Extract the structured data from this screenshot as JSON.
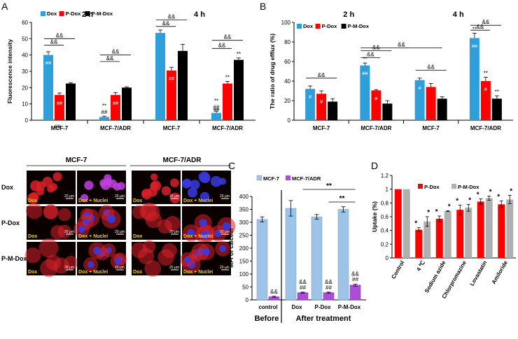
{
  "colors": {
    "dox": "#2e9fd8",
    "pdox": "#ff0000",
    "pmdox": "#000000",
    "mcf7": "#9dc3e6",
    "mcf7adr": "#a94fd6",
    "grey": "#b0b0b0",
    "micro_bg": "#0a0000",
    "micro_red": "#d8202a",
    "micro_blue": "#3a3adf",
    "micro_purple": "#c040e0"
  },
  "panel_letters": {
    "a": "A",
    "b": "B",
    "c": "C",
    "d": "D"
  },
  "chart_data": [
    {
      "id": "A",
      "type": "bar",
      "ylabel": "Fluorescence intensity",
      "ylim": [
        0,
        60
      ],
      "yticks": [
        0,
        10,
        20,
        30,
        40,
        50,
        60
      ],
      "groups": [
        "2 h",
        "4 h"
      ],
      "categories": [
        "MCF-7",
        "MCF-7/ADR",
        "MCF-7",
        "MCF-7/ADR"
      ],
      "legend": [
        "Dox",
        "P-Dox",
        "P-M-Dox"
      ],
      "series": [
        {
          "name": "Dox",
          "values": [
            40,
            2,
            53.5,
            4.5
          ],
          "errors": [
            2,
            0.5,
            1.8,
            1
          ],
          "inner_labels": [
            "##",
            "",
            "",
            "##"
          ],
          "top_labels": [
            "",
            "**\n##",
            "",
            "**\n##"
          ]
        },
        {
          "name": "P-Dox",
          "values": [
            15.5,
            15.5,
            30.5,
            22.5
          ],
          "errors": [
            1.2,
            1.5,
            2,
            1.3
          ],
          "inner_labels": [
            "##",
            "##",
            "##",
            ""
          ],
          "top_labels": [
            "",
            "",
            "",
            "**"
          ]
        },
        {
          "name": "P-M-Dox",
          "values": [
            22.5,
            20,
            42.5,
            37
          ],
          "errors": [
            0.5,
            0.5,
            4,
            1.2
          ],
          "inner_labels": [
            "",
            "",
            "",
            ""
          ],
          "top_labels": [
            "",
            "",
            "",
            "**"
          ]
        }
      ],
      "brackets": [
        "&&",
        "&&",
        "&&",
        "&&",
        "&&",
        "&&",
        "&&",
        "&&"
      ],
      "annotations": [
        "##"
      ]
    },
    {
      "id": "B",
      "type": "bar",
      "ylabel": "The ratio of drug efflux (%)",
      "ylim": [
        0,
        100
      ],
      "yticks": [
        0,
        20,
        40,
        60,
        80,
        100
      ],
      "groups": [
        "2 h",
        "4 h"
      ],
      "categories": [
        "MCF-7",
        "MCF-7/ADR",
        "MCF-7",
        "MCF-7/ADR"
      ],
      "legend": [
        "Dox",
        "P-Dox",
        "P-M-Dox"
      ],
      "series": [
        {
          "name": "Dox",
          "values": [
            32,
            56,
            41,
            84
          ],
          "errors": [
            3,
            2.5,
            2,
            5
          ],
          "inner_labels": [
            "#",
            "##",
            "#",
            "##"
          ],
          "top_labels": [
            "",
            "**",
            "",
            "**"
          ]
        },
        {
          "name": "P-Dox",
          "values": [
            27,
            30.5,
            34,
            40
          ],
          "errors": [
            3,
            0.8,
            3.5,
            4
          ],
          "inner_labels": [
            "#",
            "#",
            "",
            "#"
          ],
          "top_labels": [
            "",
            "",
            "",
            "**"
          ]
        },
        {
          "name": "P-M-Dox",
          "values": [
            19,
            17,
            22,
            22
          ],
          "errors": [
            3,
            3,
            2,
            3
          ],
          "inner_labels": [
            "",
            "",
            "",
            ""
          ],
          "top_labels": [
            "",
            "",
            "",
            "**"
          ]
        }
      ],
      "brackets": [
        "&&",
        "&&",
        "&&",
        "&&",
        "&&",
        "&&",
        "&&"
      ]
    },
    {
      "id": "C",
      "type": "bar",
      "ylabel": "MFI of calcein",
      "ylim": [
        0,
        400
      ],
      "yticks": [
        0,
        50,
        100,
        150,
        200,
        250,
        300,
        350,
        400
      ],
      "categories": [
        "control",
        "Dox",
        "P-Dox",
        "P-M-Dox"
      ],
      "legend": [
        "MCF-7",
        "MCF-7/ADR"
      ],
      "series": [
        {
          "name": "MCF-7",
          "values": [
            311,
            354,
            321,
            350
          ],
          "errors": [
            10,
            30,
            9,
            10
          ]
        },
        {
          "name": "MCF-7/ADR",
          "values": [
            12,
            28,
            28,
            57
          ],
          "errors": [
            2,
            2,
            2,
            4
          ]
        }
      ],
      "bar_labels": [
        "&&",
        "&&\n##",
        "&&\n##",
        "&&\n##"
      ],
      "top_brackets": [
        "**",
        "**"
      ],
      "footer": {
        "before": "Before",
        "after": "After treatment"
      }
    },
    {
      "id": "D",
      "type": "bar",
      "ylabel": "Uptake (%)",
      "ylim": [
        0,
        1.2
      ],
      "yticks": [
        "0",
        "0.2",
        "0.4",
        "0.6",
        "0.8",
        "1",
        "1.2"
      ],
      "categories": [
        "Control",
        "4 ℃",
        "Sodium azide",
        "Chlorpromazine",
        "Lovastatin",
        "Amiloride"
      ],
      "legend": [
        "P-Dox",
        "P-M-Dox"
      ],
      "series": [
        {
          "name": "P-Dox",
          "values": [
            1.0,
            0.41,
            0.57,
            0.7,
            0.82,
            0.78
          ],
          "errors": [
            0,
            0.03,
            0.04,
            0.07,
            0.04,
            0.05
          ]
        },
        {
          "name": "P-M-Dox",
          "values": [
            1.0,
            0.53,
            0.68,
            0.73,
            0.87,
            0.85
          ],
          "errors": [
            0,
            0.07,
            0.005,
            0.05,
            0.03,
            0.06
          ]
        }
      ],
      "star": "*"
    }
  ],
  "microscopy": {
    "col_headers": [
      "MCF-7",
      "MCF-7/ADR"
    ],
    "row_labels": [
      "Dox",
      "P-Dox",
      "P-M-Dox"
    ],
    "tile_labels": [
      "Dox",
      "Dox + Nuclei",
      "Dox",
      "Dox + Nuclei"
    ],
    "scale": "20 μm"
  }
}
